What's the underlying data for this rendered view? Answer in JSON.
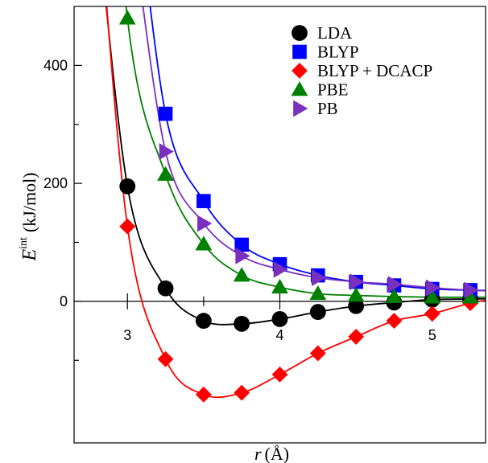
{
  "chart_data": {
    "type": "line",
    "title": "",
    "xlabel": {
      "var": "r",
      "unit": "(Å)"
    },
    "ylabel": {
      "var": "E",
      "sup": "int",
      "unit": "(kJ/mol)"
    },
    "xlim": [
      2.65,
      5.35
    ],
    "ylim": [
      -240,
      500
    ],
    "x_ticks": [
      3,
      4,
      5
    ],
    "y_ticks": [
      0,
      200,
      400
    ],
    "x_tick_labels": [
      "3",
      "4",
      "5"
    ],
    "y_tick_labels": [
      "0",
      "200",
      "400"
    ],
    "grid": false,
    "legend_position": "top-right",
    "series": [
      {
        "name": "LDA",
        "color": "#000000",
        "marker": "circle",
        "x": [
          3.0,
          3.25,
          3.5,
          3.75,
          4.0,
          4.25,
          4.5,
          4.75,
          5.0,
          5.25
        ],
        "y": [
          195,
          22,
          -33,
          -38,
          -30,
          -18,
          -8,
          -2,
          3,
          4
        ]
      },
      {
        "name": "BLYP",
        "color": "#0000ff",
        "marker": "square",
        "x": [
          3.25,
          3.5,
          3.75,
          4.0,
          4.25,
          4.5,
          4.75,
          5.0,
          5.25
        ],
        "y": [
          318,
          170,
          96,
          63,
          44,
          33,
          27,
          21,
          19
        ]
      },
      {
        "name": "BLYP + DCACP",
        "color": "#ff0000",
        "marker": "diamond",
        "x": [
          3.0,
          3.25,
          3.5,
          3.75,
          4.0,
          4.25,
          4.5,
          4.75,
          5.0,
          5.25
        ],
        "y": [
          127,
          -98,
          -158,
          -155,
          -124,
          -88,
          -60,
          -33,
          -21,
          -3
        ]
      },
      {
        "name": "PBE",
        "color": "#008000",
        "marker": "triangle-up",
        "x": [
          3.0,
          3.25,
          3.5,
          3.75,
          4.0,
          4.25,
          4.5,
          4.75,
          5.0,
          5.25
        ],
        "y": [
          480,
          215,
          97,
          44,
          24,
          13,
          10,
          8,
          7,
          7
        ]
      },
      {
        "name": "PB",
        "color": "#7b2fbe",
        "marker": "triangle-right",
        "x": [
          3.25,
          3.5,
          3.75,
          4.0,
          4.25,
          4.5,
          4.75,
          5.0,
          5.25
        ],
        "y": [
          254,
          132,
          77,
          54,
          40,
          33,
          29,
          23,
          19
        ]
      }
    ]
  }
}
